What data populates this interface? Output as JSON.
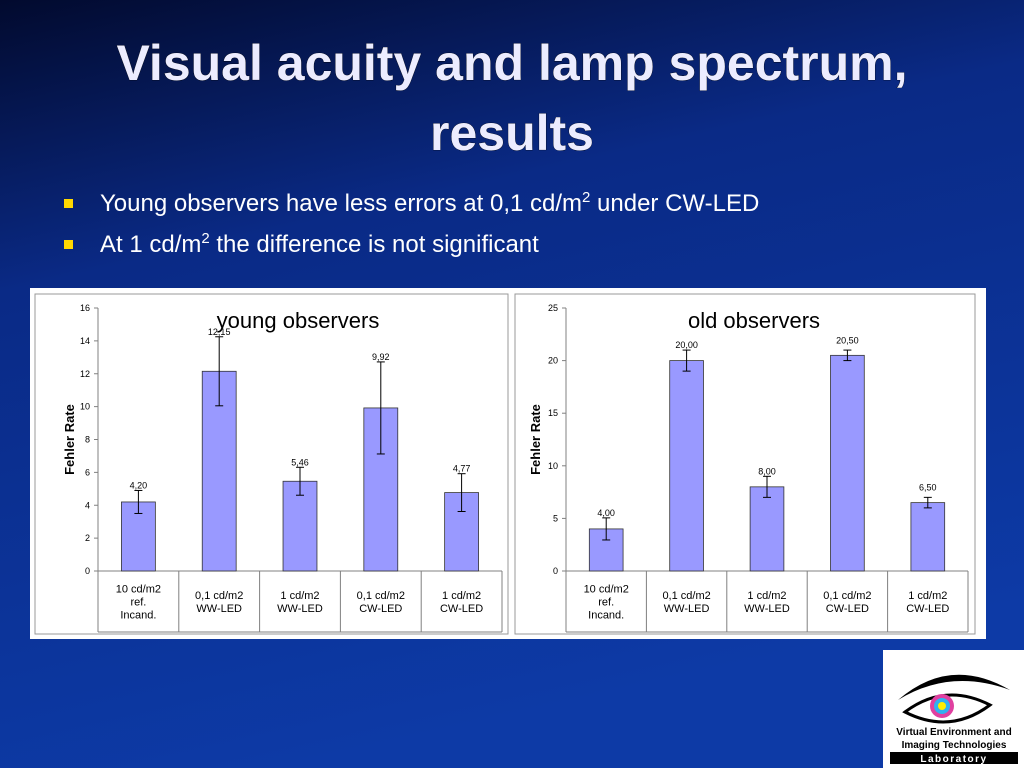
{
  "title": [
    "Visual acuity and lamp spectrum,",
    "results"
  ],
  "bullets": [
    [
      "Young observers have less errors at 0,1 cd/m",
      "2",
      " under CW-LED"
    ],
    [
      "At 1 cd/m",
      "2",
      " the difference is not significant"
    ]
  ],
  "logo": [
    "Virtual Environment and",
    "Imaging Technologies",
    "Laboratory"
  ],
  "chart_data": [
    {
      "type": "bar",
      "title": "young observers",
      "ylabel": "Fehler Rate",
      "categories": [
        [
          "10 cd/m2",
          "ref.",
          "Incand."
        ],
        [
          "0,1 cd/m2",
          "WW-LED"
        ],
        [
          "1 cd/m2",
          "WW-LED"
        ],
        [
          "0,1 cd/m2",
          "CW-LED"
        ],
        [
          "1 cd/m2",
          "CW-LED"
        ]
      ],
      "values": [
        4.2,
        12.15,
        5.46,
        9.92,
        4.77
      ],
      "value_labels": [
        "4,20",
        "12,15",
        "5,46",
        "9,92",
        "4,77"
      ],
      "errors": [
        0.7,
        2.1,
        0.85,
        2.8,
        1.15
      ],
      "color": "#9999ff",
      "ylim": [
        0,
        16
      ],
      "yticks": [
        0,
        2,
        4,
        6,
        8,
        10,
        12,
        14,
        16
      ]
    },
    {
      "type": "bar",
      "title": "old observers",
      "ylabel": "Fehler Rate",
      "categories": [
        [
          "10 cd/m2",
          "ref.",
          "Incand."
        ],
        [
          "0,1 cd/m2",
          "WW-LED"
        ],
        [
          "1 cd/m2",
          "WW-LED"
        ],
        [
          "0,1 cd/m2",
          "CW-LED"
        ],
        [
          "1 cd/m2",
          "CW-LED"
        ]
      ],
      "values": [
        4.0,
        20.0,
        8.0,
        20.5,
        6.5
      ],
      "value_labels": [
        "4,00",
        "20,00",
        "8,00",
        "20,50",
        "6,50"
      ],
      "errors": [
        1.05,
        1.0,
        1.0,
        0.5,
        0.5
      ],
      "color": "#9999ff",
      "ylim": [
        0,
        25
      ],
      "yticks": [
        0,
        5,
        10,
        15,
        20,
        25
      ]
    }
  ]
}
